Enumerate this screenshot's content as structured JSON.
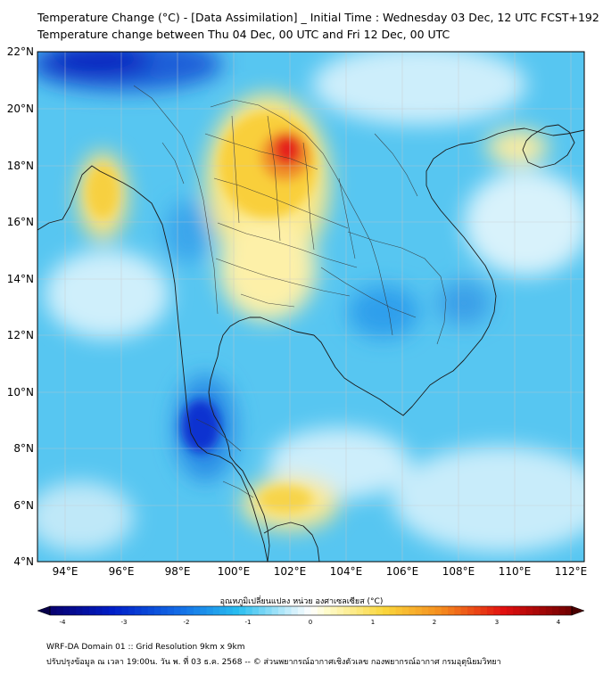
{
  "title_line1": "Temperature Change (°C) - [Data Assimilation] _ Initial Time : Wednesday 03 Dec, 12 UTC FCST+192",
  "title_line2": "Temperature change between Thu 04 Dec, 00 UTC and Fri 12 Dec, 00 UTC",
  "lat_labels": [
    "22°N",
    "20°N",
    "18°N",
    "16°N",
    "14°N",
    "12°N",
    "10°N",
    "8°N",
    "6°N",
    "4°N"
  ],
  "lon_labels": [
    "94°E",
    "96°E",
    "98°E",
    "100°E",
    "102°E",
    "104°E",
    "106°E",
    "108°E",
    "110°E",
    "112°E"
  ],
  "colorbar": {
    "title": "อุณหภูมิเปลี่ยนแปลง หน่วย องศาเซลเซียส (°C)",
    "ticks": [
      "-4",
      "-3",
      "-2",
      "-1",
      "0",
      "1",
      "2",
      "3",
      "4"
    ],
    "min": -4,
    "max": 4
  },
  "footer_line1": "WRF-DA Domain 01 :: Grid Resolution 9km x 9km",
  "footer_line2": "ปรับปรุงข้อมูล ณ เวลา 19:00น. วัน พ. ที่ 03 ธ.ค. 2568 -- © ส่วนพยากรณ์อากาศเชิงตัวเลข กองพยากรณ์อากาศ กรมอุตุนิยมวิทยา",
  "colors": {
    "cold": "#0a1fc8",
    "cool": "#35b9f0",
    "neutral": "#f4fbff",
    "warm": "#f6c21f",
    "hot": "#e31010"
  }
}
